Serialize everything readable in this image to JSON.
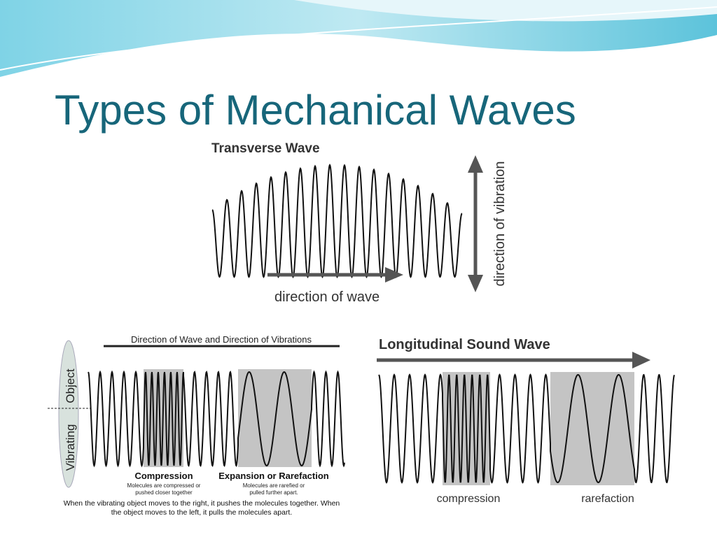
{
  "slide": {
    "title": "Types of Mechanical Waves"
  },
  "transverse": {
    "title": "Transverse Wave",
    "wave_direction": "direction of wave",
    "vibration_direction": "direction of vibration"
  },
  "longitudinal_left": {
    "header": "Direction of Wave and Direction of Vibrations",
    "object_label_1": "Vibrating",
    "object_label_2": "Object",
    "compression": "Compression",
    "compression_note_1": "Molecules are compressed or",
    "compression_note_2": "pushed closer together",
    "rarefaction": "Expansion or Rarefaction",
    "rarefaction_note_1": "Molecules are rarefied or",
    "rarefaction_note_2": "pulled further apart.",
    "caption_1": "When the vibrating object moves to the right, it pushes the molecules together. When",
    "caption_2": "the object moves to the left, it pulls the molecules apart."
  },
  "longitudinal_right": {
    "title": "Longitudinal Sound Wave",
    "compression": "compression",
    "rarefaction": "rarefaction"
  }
}
